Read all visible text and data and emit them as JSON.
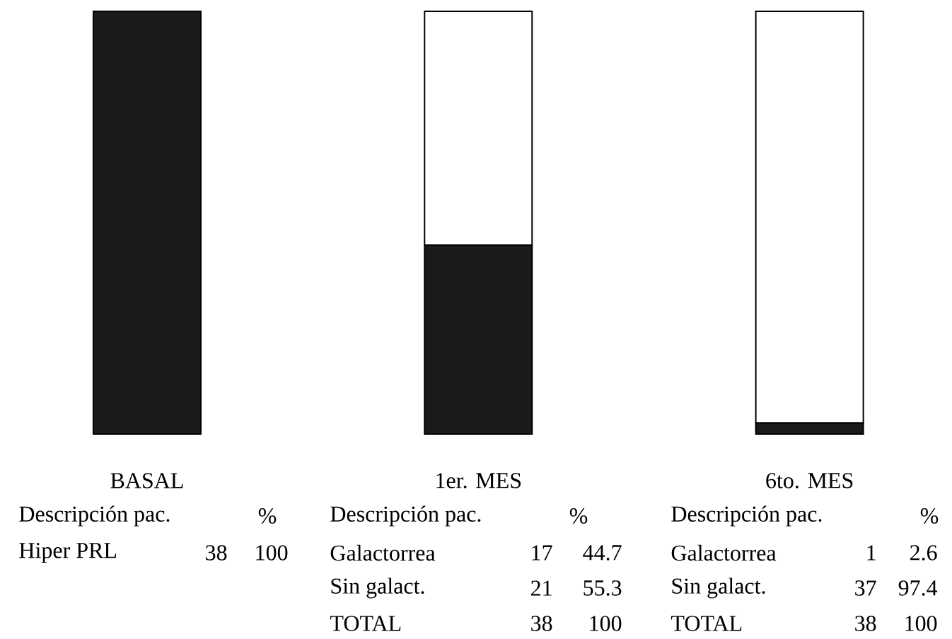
{
  "chart_data": {
    "type": "bar",
    "stacked": true,
    "data_labels": true,
    "categories": [
      "BASAL",
      "1er. MES",
      "6to. MES"
    ],
    "series": [
      {
        "color": "#1a1a1a",
        "values": [
          100,
          44.7,
          2.6
        ]
      },
      {
        "color": "#ffffff",
        "values": [
          null,
          55.3,
          97.4
        ]
      }
    ],
    "ylim": [
      0,
      100
    ],
    "annotations": [
      "Descripción pac.",
      "%",
      "Hiper PRL",
      "38",
      "Descripción pac.",
      "%",
      "Galactorrea",
      "17",
      "Sin galact.",
      "21",
      "TOTAL",
      "38",
      "100",
      "Descripción pac.",
      "%",
      "Galactorrea",
      "1",
      "Sin galact.",
      "37",
      "TOTAL",
      "38",
      "100"
    ]
  }
}
